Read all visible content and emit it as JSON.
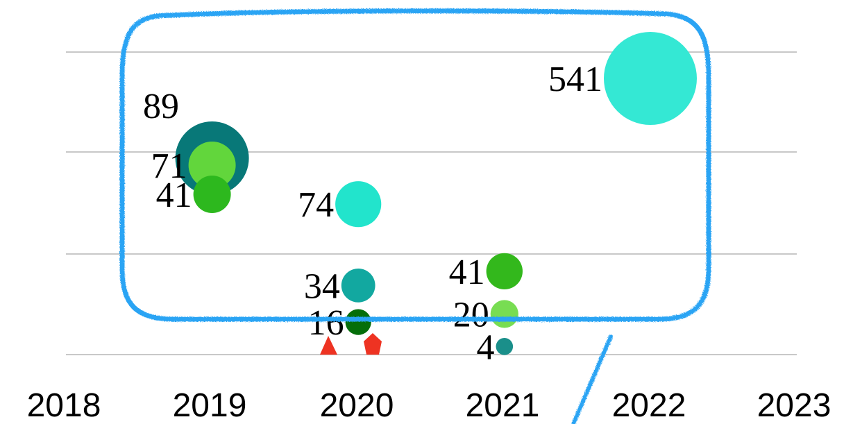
{
  "chart_data": {
    "type": "scatter",
    "x_ticks": [
      "2018",
      "2019",
      "2020",
      "2021",
      "2022",
      "2023"
    ],
    "xlim": [
      2018,
      2023
    ],
    "grid": true,
    "points": [
      {
        "x": 2019,
        "y": 89,
        "label": "89",
        "color": "#087878"
      },
      {
        "x": 2019,
        "y": 71,
        "label": "71",
        "color": "#62d63c"
      },
      {
        "x": 2019,
        "y": 41,
        "label": "41",
        "color": "#2db81e"
      },
      {
        "x": 2020,
        "y": 74,
        "label": "74",
        "color": "#22e4cc"
      },
      {
        "x": 2020,
        "y": 34,
        "label": "34",
        "color": "#12a8a0"
      },
      {
        "x": 2020,
        "y": 16,
        "label": "16",
        "color": "#056e0a"
      },
      {
        "x": 2021,
        "y": 41,
        "label": "41",
        "color": "#33b81c"
      },
      {
        "x": 2021,
        "y": 20,
        "label": "20",
        "color": "#78dd52"
      },
      {
        "x": 2021,
        "y": 4,
        "label": "4",
        "color": "#1a8f8a"
      },
      {
        "x": 2022,
        "y": 541,
        "label": "541",
        "color": "#34e8d4"
      }
    ]
  },
  "annotation": {
    "outline_color": "#2aa4f4",
    "marker_color": "#ee3322"
  }
}
